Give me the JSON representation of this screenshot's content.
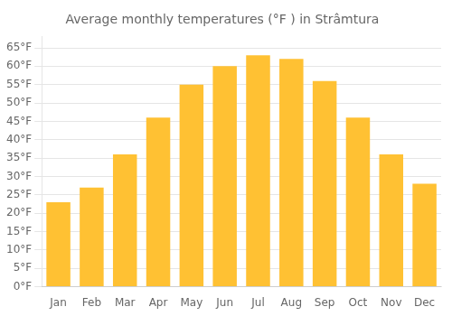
{
  "chart_data": {
    "type": "bar",
    "title": "Average monthly temperatures (°F ) in Strâmtura",
    "categories": [
      "Jan",
      "Feb",
      "Mar",
      "Apr",
      "May",
      "Jun",
      "Jul",
      "Aug",
      "Sep",
      "Oct",
      "Nov",
      "Dec"
    ],
    "values": [
      23,
      27,
      36,
      46,
      55,
      60,
      63,
      62,
      56,
      46,
      36,
      28
    ],
    "color": "#FFC133",
    "ylim": [
      0,
      68
    ],
    "yticks": [
      {
        "value": 0,
        "label": "0°F"
      },
      {
        "value": 5,
        "label": "5°F"
      },
      {
        "value": 10,
        "label": "10°F"
      },
      {
        "value": 15,
        "label": "15°F"
      },
      {
        "value": 20,
        "label": "20°F"
      },
      {
        "value": 25,
        "label": "25°F"
      },
      {
        "value": 30,
        "label": "30°F"
      },
      {
        "value": 35,
        "label": "35°F"
      },
      {
        "value": 40,
        "label": "40°F"
      },
      {
        "value": 45,
        "label": "45°F"
      },
      {
        "value": 50,
        "label": "50°F"
      },
      {
        "value": 55,
        "label": "55°F"
      },
      {
        "value": 60,
        "label": "60°F"
      },
      {
        "value": 65,
        "label": "65°F"
      }
    ],
    "grid": true
  }
}
